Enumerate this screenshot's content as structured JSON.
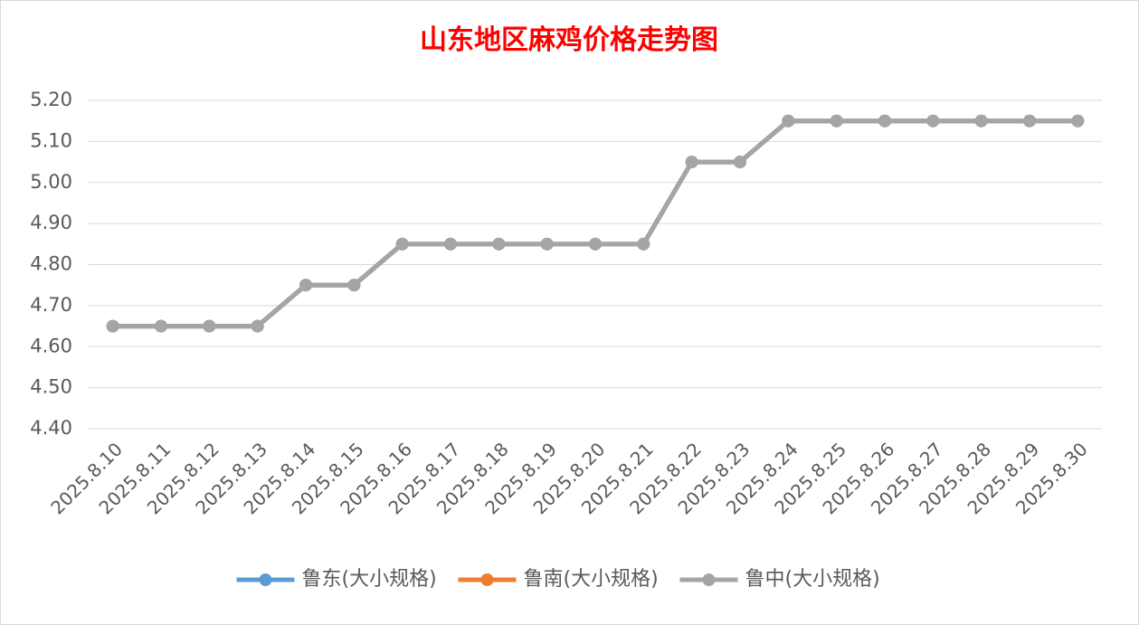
{
  "chart_data": {
    "type": "line",
    "title": "山东地区麻鸡价格走势图",
    "categories": [
      "2025.8.10",
      "2025.8.11",
      "2025.8.12",
      "2025.8.13",
      "2025.8.14",
      "2025.8.15",
      "2025.8.16",
      "2025.8.17",
      "2025.8.18",
      "2025.8.19",
      "2025.8.20",
      "2025.8.21",
      "2025.8.22",
      "2025.8.23",
      "2025.8.24",
      "2025.8.25",
      "2025.8.26",
      "2025.8.27",
      "2025.8.28",
      "2025.8.29",
      "2025.8.30"
    ],
    "series": [
      {
        "name": "鲁东(大小规格)",
        "color": "#5b9bd5",
        "values": [
          4.65,
          4.65,
          4.65,
          4.65,
          4.75,
          4.75,
          4.85,
          4.85,
          4.85,
          4.85,
          4.85,
          4.85,
          5.05,
          5.05,
          5.15,
          5.15,
          5.15,
          5.15,
          5.15,
          5.15,
          5.15
        ]
      },
      {
        "name": "鲁南(大小规格)",
        "color": "#ed7d31",
        "values": [
          4.65,
          4.65,
          4.65,
          4.65,
          4.75,
          4.75,
          4.85,
          4.85,
          4.85,
          4.85,
          4.85,
          4.85,
          5.05,
          5.05,
          5.15,
          5.15,
          5.15,
          5.15,
          5.15,
          5.15,
          5.15
        ]
      },
      {
        "name": "鲁中(大小规格)",
        "color": "#a5a5a5",
        "values": [
          4.65,
          4.65,
          4.65,
          4.65,
          4.75,
          4.75,
          4.85,
          4.85,
          4.85,
          4.85,
          4.85,
          4.85,
          5.05,
          5.05,
          5.15,
          5.15,
          5.15,
          5.15,
          5.15,
          5.15,
          5.15
        ]
      }
    ],
    "ylim": [
      4.4,
      5.2
    ],
    "yticks": [
      {
        "value": 4.4,
        "label": "4.40"
      },
      {
        "value": 4.5,
        "label": "4.50"
      },
      {
        "value": 4.6,
        "label": "4.60"
      },
      {
        "value": 4.7,
        "label": "4.70"
      },
      {
        "value": 4.8,
        "label": "4.80"
      },
      {
        "value": 4.9,
        "label": "4.90"
      },
      {
        "value": 5.0,
        "label": "5.00"
      },
      {
        "value": 5.1,
        "label": "5.10"
      },
      {
        "value": 5.2,
        "label": "5.20"
      }
    ],
    "grid": true,
    "legend": "bottom"
  }
}
